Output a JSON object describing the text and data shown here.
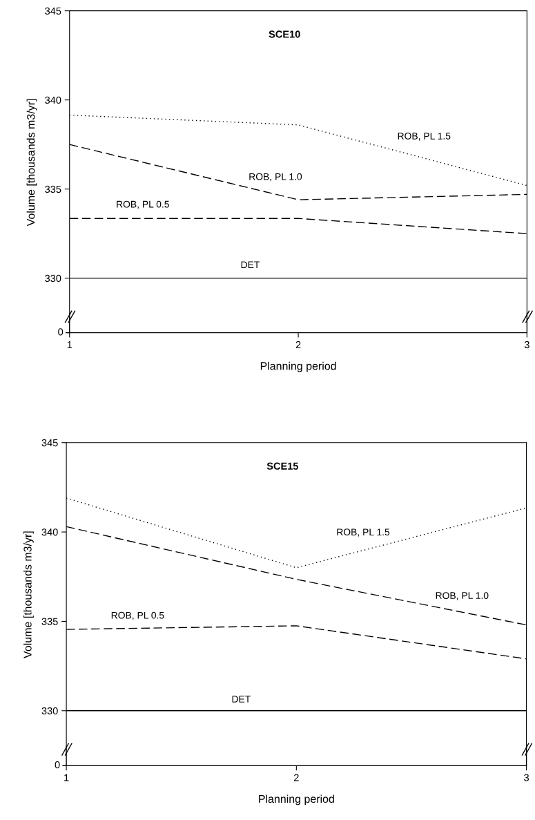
{
  "chart_data": [
    {
      "type": "line",
      "title": "SCE10",
      "xlabel": "Planning period",
      "ylabel": "Volume [thousands m3/yr]",
      "x": [
        1,
        2,
        3
      ],
      "xlim": [
        1,
        3
      ],
      "xticks": [
        1,
        2,
        3
      ],
      "ylim": [
        328,
        345
      ],
      "yticks": [
        330,
        335,
        340,
        345
      ],
      "series": [
        {
          "name": "ROB, PL 1.5",
          "color": "#000000",
          "line_style": "dotted",
          "values": [
            339.15,
            338.6,
            335.2
          ]
        },
        {
          "name": "ROB, PL 1.0",
          "color": "#000000",
          "line_style": "dashed",
          "values": [
            337.5,
            334.4,
            334.7
          ]
        },
        {
          "name": "ROB, PL 0.5",
          "color": "#000000",
          "line_style": "dashed",
          "values": [
            333.35,
            333.35,
            332.5
          ]
        },
        {
          "name": "DET",
          "color": "#000000",
          "line_style": "solid",
          "values": [
            330,
            330,
            330
          ]
        }
      ],
      "annotations": [
        "0"
      ]
    },
    {
      "type": "line",
      "title": "SCE15",
      "xlabel": "Planning period",
      "ylabel": "Volume [thousands m3/yr]",
      "x": [
        1,
        2,
        3
      ],
      "xlim": [
        1,
        3
      ],
      "xticks": [
        1,
        2,
        3
      ],
      "ylim": [
        328,
        345
      ],
      "yticks": [
        330,
        335,
        340,
        345
      ],
      "series": [
        {
          "name": "ROB, PL 1.5",
          "color": "#000000",
          "line_style": "dotted",
          "values": [
            341.9,
            338.0,
            341.35
          ]
        },
        {
          "name": "ROB, PL 1.0",
          "color": "#000000",
          "line_style": "dashed",
          "values": [
            340.3,
            337.35,
            334.8
          ]
        },
        {
          "name": "ROB, PL 0.5",
          "color": "#000000",
          "line_style": "dashed",
          "values": [
            334.55,
            334.75,
            332.9
          ]
        },
        {
          "name": "DET",
          "color": "#000000",
          "line_style": "solid",
          "values": [
            330,
            330,
            330
          ]
        }
      ],
      "annotations": [
        "0"
      ]
    }
  ]
}
